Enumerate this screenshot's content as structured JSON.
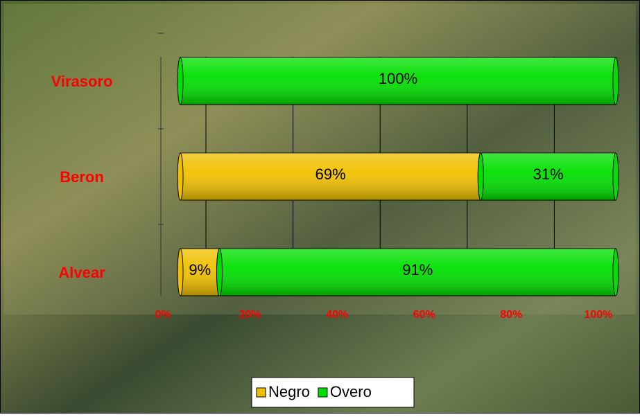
{
  "chart_data": {
    "type": "bar",
    "orientation": "horizontal",
    "stacked": true,
    "categories": [
      "Alvear",
      "Beron",
      "Virasoro"
    ],
    "series": [
      {
        "name": "Negro",
        "color": "#f0c000",
        "values": [
          9,
          69,
          0
        ],
        "value_labels": [
          "9%",
          "69%",
          null
        ]
      },
      {
        "name": "Overo",
        "color": "#00e000",
        "values": [
          91,
          31,
          100
        ],
        "value_labels": [
          "91%",
          "31%",
          "100%"
        ]
      }
    ],
    "xlim": [
      0,
      100
    ],
    "xticks": [
      {
        "value": 0,
        "label": "0%"
      },
      {
        "value": 20,
        "label": "20%"
      },
      {
        "value": 40,
        "label": "40%"
      },
      {
        "value": 60,
        "label": "60%"
      },
      {
        "value": 80,
        "label": "80%"
      },
      {
        "value": 100,
        "label": "100%"
      }
    ],
    "grid": true,
    "legend": "bottom"
  }
}
